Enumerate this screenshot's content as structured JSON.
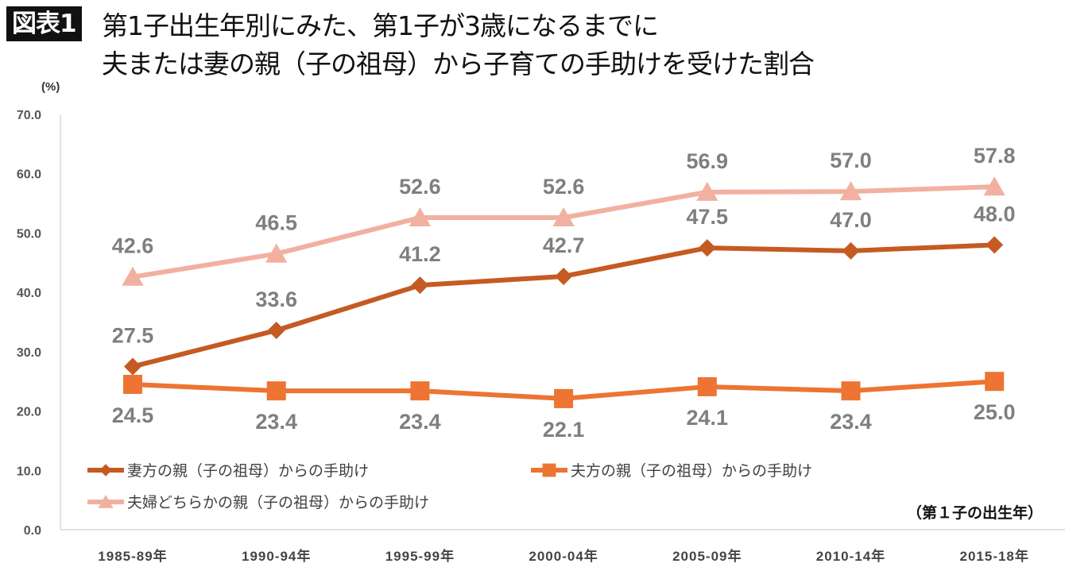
{
  "header": {
    "badge": "図表1",
    "title_line1": "第1子出生年別にみた、第1子が3歳になるまでに",
    "title_line2": "夫または妻の親（子の祖母）から子育ての手助けを受けた割合"
  },
  "chart_data": {
    "type": "line",
    "title": "図表1 第1子出生年別にみた、第1子が3歳になるまでに夫または妻の親（子の祖母）から子育ての手助けを受けた割合",
    "ylabel": "(%)",
    "xlabel": "（第１子の出生年）",
    "ylim": [
      0,
      70
    ],
    "yticks": [
      "0.0",
      "10.0",
      "20.0",
      "30.0",
      "40.0",
      "50.0",
      "60.0",
      "70.0"
    ],
    "grid": false,
    "legend_position": "bottom-inside",
    "categories": [
      "1985-89年",
      "1990-94年",
      "1995-99年",
      "2000-04年",
      "2005-09年",
      "2010-14年",
      "2015-18年"
    ],
    "series": [
      {
        "name": "妻方の親（子の祖母）からの手助け",
        "marker": "diamond",
        "color": "#c55a22",
        "label_position": "above",
        "values": [
          27.5,
          33.6,
          41.2,
          42.7,
          47.5,
          47.0,
          48.0
        ]
      },
      {
        "name": "夫方の親（子の祖母）からの手助け",
        "marker": "square",
        "color": "#ed7432",
        "label_position": "below",
        "values": [
          24.5,
          23.4,
          23.4,
          22.1,
          24.1,
          23.4,
          25.0
        ]
      },
      {
        "name": "夫婦どちらかの親（子の祖母）からの手助け",
        "marker": "triangle",
        "color": "#f2b0a0",
        "label_position": "above",
        "values": [
          42.6,
          46.5,
          52.6,
          52.6,
          56.9,
          57.0,
          57.8
        ]
      }
    ]
  }
}
